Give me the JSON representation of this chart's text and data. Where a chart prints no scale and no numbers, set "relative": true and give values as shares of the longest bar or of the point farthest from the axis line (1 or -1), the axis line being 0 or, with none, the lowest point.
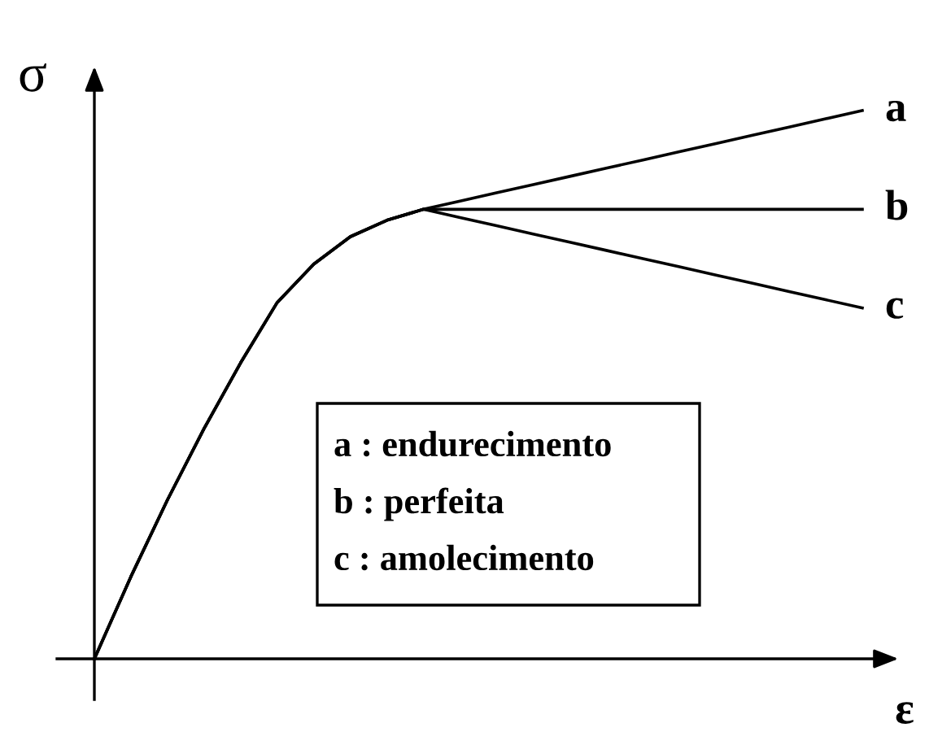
{
  "chart_data": {
    "type": "line",
    "relative": true,
    "xlabel": "ε",
    "ylabel": "σ",
    "line_style": "solid",
    "marker": "none",
    "legend": false,
    "categories": [
      null,
      null,
      null,
      null,
      null,
      null,
      null,
      null,
      null,
      null,
      null,
      null,
      null,
      null,
      null,
      null,
      null,
      null,
      null,
      null,
      null,
      null
    ],
    "series": [
      {
        "name": "a",
        "color": "#000000",
        "values": [
          0,
          0.15,
          0.29,
          0.42,
          0.54,
          0.65,
          0.72,
          0.77,
          0.8,
          0.82,
          0.835,
          0.85,
          0.865,
          0.88,
          0.895,
          0.91,
          0.925,
          0.94,
          0.955,
          0.97,
          0.985,
          1.0
        ]
      },
      {
        "name": "b",
        "color": "#000000",
        "values": [
          0,
          0.15,
          0.29,
          0.42,
          0.54,
          0.65,
          0.72,
          0.77,
          0.8,
          0.82,
          0.82,
          0.82,
          0.82,
          0.82,
          0.82,
          0.82,
          0.82,
          0.82,
          0.82,
          0.82,
          0.82,
          0.82
        ]
      },
      {
        "name": "c",
        "color": "#000000",
        "values": [
          0,
          0.15,
          0.29,
          0.42,
          0.54,
          0.65,
          0.72,
          0.77,
          0.8,
          0.82,
          0.805,
          0.79,
          0.775,
          0.76,
          0.745,
          0.73,
          0.715,
          0.7,
          0.685,
          0.67,
          0.655,
          0.64
        ]
      }
    ],
    "annotations": [
      "a : endurecimento",
      "b : perfeita",
      "c : amolecimento"
    ]
  }
}
